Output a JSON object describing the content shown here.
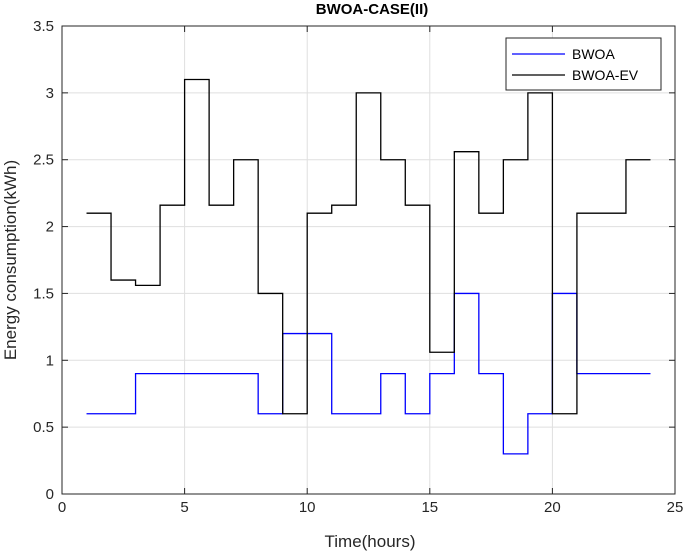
{
  "chart_data": {
    "type": "line",
    "step": "post",
    "title": "BWOA-CASE(II)",
    "xlabel": "Time(hours)",
    "ylabel": "Energy consumption(kWh)",
    "xlim": [
      0,
      25
    ],
    "ylim": [
      0,
      3.5
    ],
    "xticks": [
      0,
      5,
      10,
      15,
      20,
      25
    ],
    "yticks": [
      0,
      0.5,
      1,
      1.5,
      2,
      2.5,
      3,
      3.5
    ],
    "xtick_labels": [
      "0",
      "5",
      "10",
      "15",
      "20",
      "25"
    ],
    "ytick_labels": [
      "0",
      "0.5",
      "1",
      "1.5",
      "2",
      "2.5",
      "3",
      "3.5"
    ],
    "grid": true,
    "legend_position": "top-right",
    "x": [
      1,
      2,
      3,
      4,
      5,
      6,
      7,
      8,
      9,
      10,
      11,
      12,
      13,
      14,
      15,
      16,
      17,
      18,
      19,
      20,
      21,
      22,
      23,
      24
    ],
    "series": [
      {
        "name": "BWOA",
        "color": "#0000ff",
        "values": [
          0.6,
          0.6,
          0.9,
          0.9,
          0.9,
          0.9,
          0.9,
          0.6,
          1.2,
          1.2,
          0.6,
          0.6,
          0.9,
          0.6,
          0.9,
          1.5,
          0.9,
          0.3,
          0.6,
          1.5,
          0.9,
          0.9,
          0.9,
          0.9
        ]
      },
      {
        "name": "BWOA-EV",
        "color": "#000000",
        "values": [
          2.1,
          1.6,
          1.56,
          2.16,
          3.1,
          2.16,
          2.5,
          1.5,
          0.6,
          2.1,
          2.16,
          3.0,
          2.5,
          2.16,
          1.06,
          2.56,
          2.1,
          2.5,
          3.0,
          0.6,
          2.1,
          2.1,
          2.5,
          2.5
        ]
      }
    ]
  }
}
